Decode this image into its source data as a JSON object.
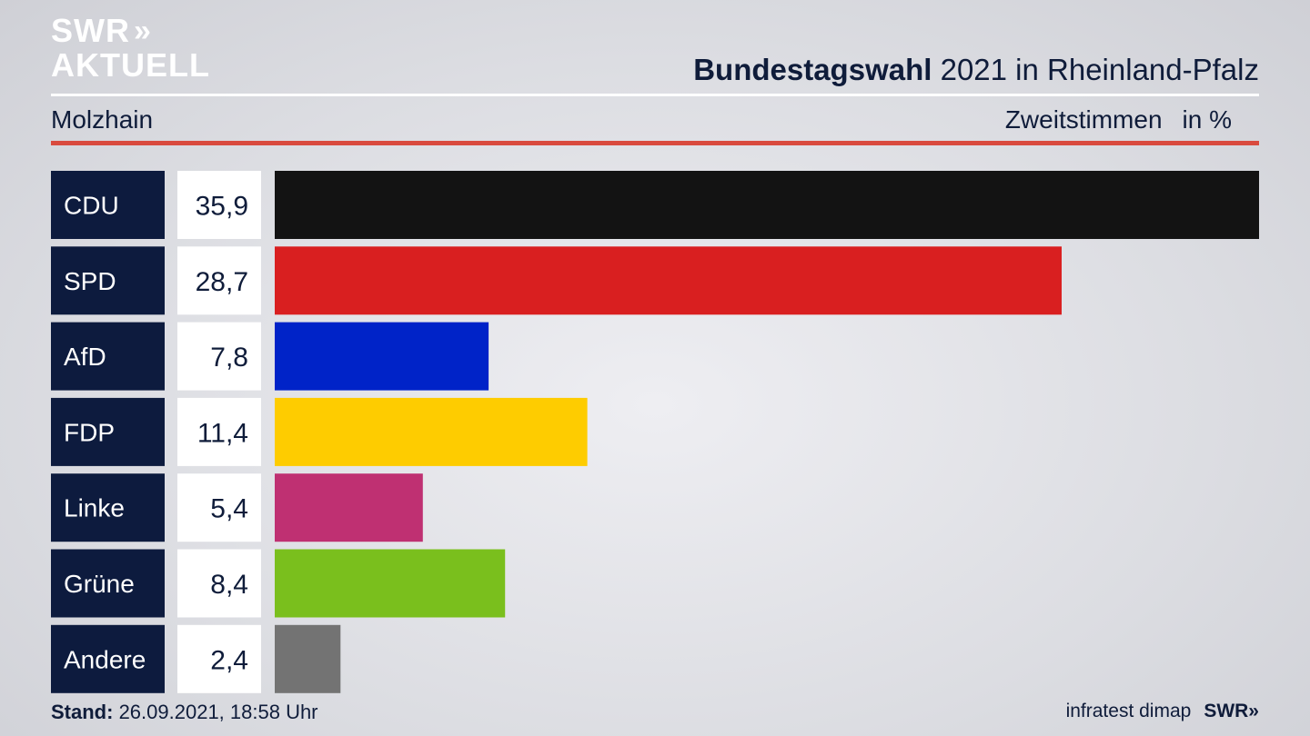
{
  "brand": {
    "logo_line1": "SWR",
    "logo_chevrons": "»",
    "logo_line2": "AKTUELL"
  },
  "header": {
    "title_bold": "Bundestagswahl",
    "title_rest": " 2021 in Rheinland-Pfalz",
    "location": "Molzhain",
    "vote_type": "Zweitstimmen",
    "unit": "in %"
  },
  "colors": {
    "label_box": "#0d1b3e",
    "value_box": "#ffffff",
    "accent_rule": "#d94a3e"
  },
  "chart_data": {
    "type": "bar",
    "orientation": "horizontal",
    "categories": [
      "CDU",
      "SPD",
      "AfD",
      "FDP",
      "Linke",
      "Grüne",
      "Andere"
    ],
    "values": [
      35.9,
      28.7,
      7.8,
      11.4,
      5.4,
      8.4,
      2.4
    ],
    "value_labels": [
      "35,9",
      "28,7",
      "7,8",
      "11,4",
      "5,4",
      "8,4",
      "2,4"
    ],
    "bar_colors": [
      "#131313",
      "#d91f20",
      "#0023c8",
      "#fecc00",
      "#bf3072",
      "#7abf1d",
      "#737373"
    ],
    "xlim": [
      0,
      35.9
    ],
    "grid": false,
    "legend": "none"
  },
  "footer": {
    "stand_label": "Stand:",
    "stand_value": " 26.09.2021, 18:58 Uhr",
    "source": "infratest dimap",
    "source_logo": "SWR»"
  }
}
